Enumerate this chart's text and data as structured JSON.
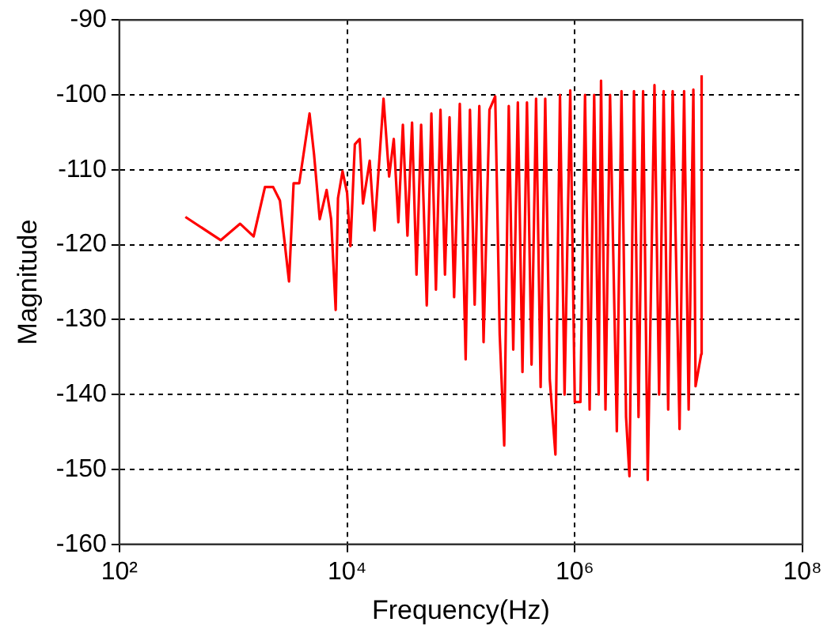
{
  "chart_data": {
    "type": "line",
    "xlabel": "Frequency(Hz)",
    "ylabel": "Magnitude",
    "log": "x",
    "grid": true,
    "legend": false,
    "marker": "none",
    "line_style": "solid",
    "xlim": [
      100,
      100000000
    ],
    "xticks": [
      {
        "value": 100,
        "label": "10²"
      },
      {
        "value": 10000,
        "label": "10⁴"
      },
      {
        "value": 1000000,
        "label": "10⁶"
      },
      {
        "value": 100000000,
        "label": "10⁸"
      }
    ],
    "ylim": [
      -160,
      -90
    ],
    "yticks": [
      -160,
      -150,
      -140,
      -130,
      -120,
      -110,
      -100,
      -90
    ],
    "series": [
      {
        "color": "#ff0000",
        "x": [
          380,
          776,
          1150,
          1510,
          1900,
          2240,
          2570,
          3090,
          3390,
          3800,
          4680,
          5130,
          5750,
          6610,
          7240,
          7940,
          8320,
          9120,
          10000,
          10700,
          11700,
          12900,
          13800,
          15800,
          17400,
          20900,
          23400,
          25700,
          28200,
          30900,
          33900,
          37200,
          40700,
          44700,
          50100,
          55000,
          60300,
          66100,
          72400,
          79400,
          87100,
          97700,
          110000,
          120000,
          132000,
          145000,
          158000,
          178000,
          200000,
          219000,
          240000,
          263000,
          288000,
          316000,
          347000,
          380000,
          417000,
          457000,
          501000,
          550000,
          603000,
          676000,
          741000,
          813000,
          912000,
          1000000,
          1120000,
          1230000,
          1350000,
          1480000,
          1620000,
          1700000,
          1860000,
          2040000,
          2340000,
          2570000,
          2820000,
          3020000,
          3310000,
          3630000,
          3980000,
          4370000,
          5010000,
          5500000,
          6030000,
          6610000,
          7240000,
          8320000,
          9120000,
          10000000,
          11000000,
          11500000,
          12900000,
          13000000
        ],
        "values": [
          -116.3,
          -119.4,
          -117.2,
          -118.9,
          -112.3,
          -112.3,
          -114.1,
          -124.9,
          -111.8,
          -111.8,
          -102.5,
          -108,
          -116.6,
          -112.7,
          -116.6,
          -128.7,
          -113.8,
          -110.2,
          -113.1,
          -120.2,
          -106.6,
          -105.9,
          -114.5,
          -108.8,
          -118.1,
          -100.5,
          -110.9,
          -105.9,
          -117,
          -104,
          -118.8,
          -103.7,
          -124,
          -104,
          -128.1,
          -102.5,
          -126,
          -102,
          -124,
          -103,
          -127,
          -101.2,
          -135.3,
          -102,
          -128,
          -101.5,
          -133,
          -102,
          -100.2,
          -132,
          -146.8,
          -101.5,
          -134,
          -101,
          -137,
          -101,
          -136,
          -100.5,
          -139,
          -100.5,
          -138,
          -148,
          -100,
          -140,
          -99.4,
          -141,
          -141,
          -100,
          -142,
          -100,
          -140,
          -98.1,
          -142,
          -100,
          -144.9,
          -99.5,
          -143,
          -150.9,
          -99.5,
          -143,
          -99.5,
          -151.4,
          -98.7,
          -140,
          -99.5,
          -142,
          -99.5,
          -144.6,
          -99.5,
          -142,
          -99.3,
          -138.9,
          -134.6,
          -97.4
        ]
      }
    ]
  }
}
